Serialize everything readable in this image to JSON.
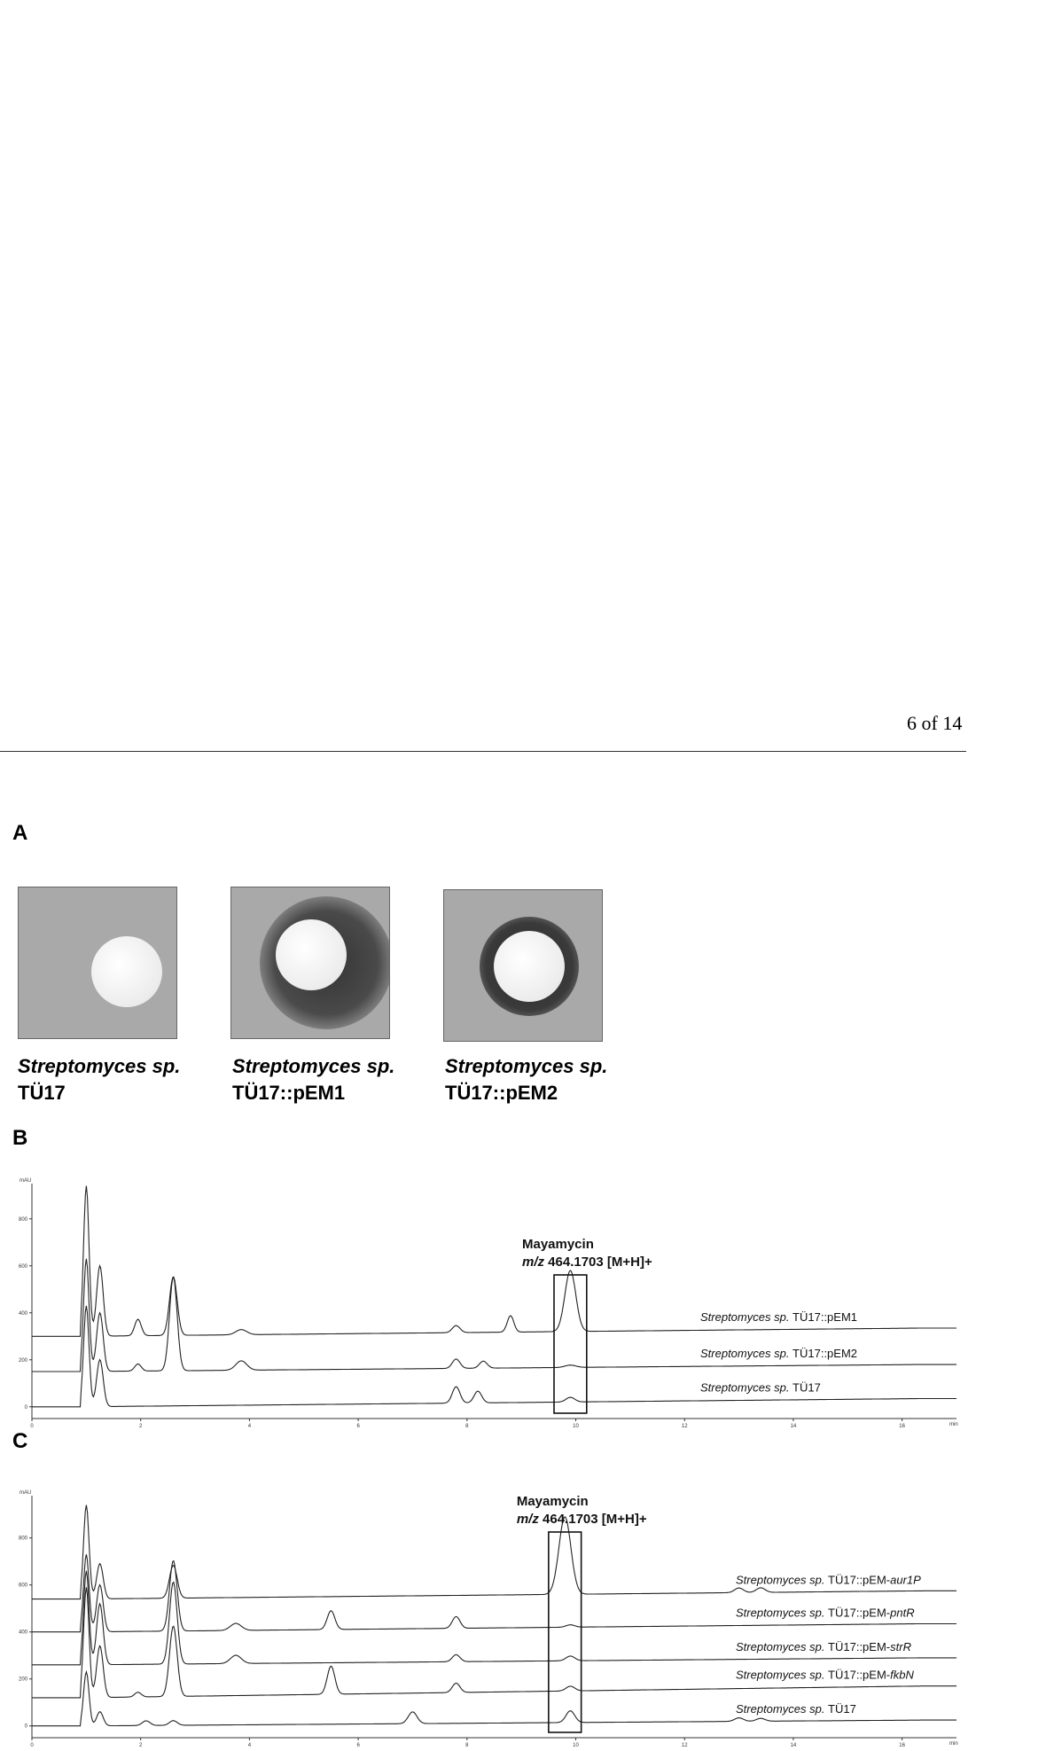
{
  "page_number": "6 of 14",
  "panels": {
    "a": "A",
    "b": "B",
    "c": "C"
  },
  "plates": [
    {
      "species": "Streptomyces sp.",
      "strain": "TÜ17"
    },
    {
      "species": "Streptomyces sp.",
      "strain": "TÜ17::pEM1"
    },
    {
      "species": "Streptomyces sp.",
      "strain": "TÜ17::pEM2"
    }
  ],
  "chart_data": [
    {
      "type": "line",
      "panel": "B",
      "yunit": "mAU",
      "xunit": "min",
      "xlim": [
        0,
        17
      ],
      "ylim": [
        -50,
        950
      ],
      "x_ticks": [
        "0",
        "2",
        "4",
        "6",
        "8",
        "10",
        "12",
        "14",
        "16"
      ],
      "y_ticks": [
        "0",
        "200",
        "400",
        "600",
        "800"
      ],
      "annotation": {
        "name": "Mayamycin",
        "mz_prefix": "m/z",
        "mz_value": "464.1703 [M+H]+",
        "x_range": [
          9.6,
          10.2
        ]
      },
      "series": [
        {
          "name": "TÜ17::pEM1",
          "species": "Streptomyces sp.",
          "baseline": 300,
          "end_level": 335,
          "peaks": [
            [
              1.0,
              640,
              0.05
            ],
            [
              1.25,
              300,
              0.06
            ],
            [
              1.95,
              70,
              0.06
            ],
            [
              2.6,
              250,
              0.07
            ],
            [
              3.85,
              22,
              0.1
            ],
            [
              7.8,
              30,
              0.07
            ],
            [
              8.8,
              70,
              0.06
            ],
            [
              9.9,
              260,
              0.1
            ]
          ]
        },
        {
          "name": "TÜ17::pEM2",
          "species": "Streptomyces sp.",
          "baseline": 150,
          "end_level": 180,
          "peaks": [
            [
              1.0,
              480,
              0.05
            ],
            [
              1.25,
              250,
              0.06
            ],
            [
              1.95,
              30,
              0.06
            ],
            [
              2.6,
              400,
              0.07
            ],
            [
              3.85,
              40,
              0.1
            ],
            [
              7.8,
              40,
              0.07
            ],
            [
              8.3,
              30,
              0.07
            ],
            [
              9.9,
              10,
              0.1
            ]
          ]
        },
        {
          "name": "TÜ17",
          "species": "Streptomyces sp.",
          "baseline": 0,
          "end_level": 35,
          "peaks": [
            [
              1.0,
              430,
              0.05
            ],
            [
              1.25,
              200,
              0.06
            ],
            [
              7.8,
              70,
              0.07
            ],
            [
              8.2,
              50,
              0.07
            ],
            [
              9.9,
              20,
              0.08
            ]
          ]
        }
      ]
    },
    {
      "type": "line",
      "panel": "C",
      "yunit": "mAU",
      "xunit": "min",
      "xlim": [
        0,
        17
      ],
      "ylim": [
        -50,
        980
      ],
      "x_ticks": [
        "0",
        "2",
        "4",
        "6",
        "8",
        "10",
        "12",
        "14",
        "16"
      ],
      "y_ticks": [
        "0",
        "200",
        "400",
        "600",
        "800"
      ],
      "annotation": {
        "name": "Mayamycin",
        "mz_prefix": "m/z",
        "mz_value": "464.1703 [M+H]+",
        "x_range": [
          9.5,
          10.1
        ]
      },
      "series": [
        {
          "name": "TÜ17::pEM-aur1P",
          "species": "Streptomyces sp.",
          "baseline": 540,
          "end_level": 575,
          "peaks": [
            [
              1.0,
              400,
              0.05
            ],
            [
              1.25,
              150,
              0.06
            ],
            [
              2.6,
              140,
              0.07
            ],
            [
              9.8,
              330,
              0.11
            ],
            [
              13.0,
              20,
              0.08
            ],
            [
              13.4,
              20,
              0.08
            ]
          ]
        },
        {
          "name": "TÜ17::pEM-pntR",
          "species": "Streptomyces sp.",
          "baseline": 400,
          "end_level": 435,
          "peaks": [
            [
              1.0,
              330,
              0.05
            ],
            [
              1.25,
              200,
              0.06
            ],
            [
              2.6,
              300,
              0.07
            ],
            [
              3.75,
              30,
              0.1
            ],
            [
              5.5,
              80,
              0.07
            ],
            [
              7.8,
              50,
              0.07
            ],
            [
              9.9,
              10,
              0.08
            ]
          ]
        },
        {
          "name": "TÜ17::pEM-strR",
          "species": "Streptomyces sp.",
          "baseline": 260,
          "end_level": 290,
          "peaks": [
            [
              1.0,
              400,
              0.05
            ],
            [
              1.25,
              260,
              0.06
            ],
            [
              2.6,
              350,
              0.07
            ],
            [
              3.75,
              35,
              0.1
            ],
            [
              7.8,
              30,
              0.07
            ],
            [
              9.9,
              20,
              0.08
            ]
          ]
        },
        {
          "name": "TÜ17::pEM-fkbN",
          "species": "Streptomyces sp.",
          "baseline": 120,
          "end_level": 170,
          "peaks": [
            [
              1.0,
              470,
              0.05
            ],
            [
              1.25,
              220,
              0.06
            ],
            [
              1.95,
              20,
              0.06
            ],
            [
              2.6,
              300,
              0.07
            ],
            [
              5.5,
              120,
              0.07
            ],
            [
              7.8,
              40,
              0.07
            ],
            [
              9.9,
              20,
              0.08
            ]
          ]
        },
        {
          "name": "TÜ17",
          "species": "Streptomyces sp.",
          "baseline": 0,
          "end_level": 25,
          "peaks": [
            [
              1.0,
              230,
              0.05
            ],
            [
              1.25,
              60,
              0.06
            ],
            [
              2.1,
              20,
              0.07
            ],
            [
              2.6,
              20,
              0.07
            ],
            [
              7.0,
              50,
              0.08
            ],
            [
              9.9,
              50,
              0.08
            ],
            [
              13.0,
              15,
              0.08
            ],
            [
              13.4,
              12,
              0.08
            ]
          ]
        }
      ]
    }
  ]
}
